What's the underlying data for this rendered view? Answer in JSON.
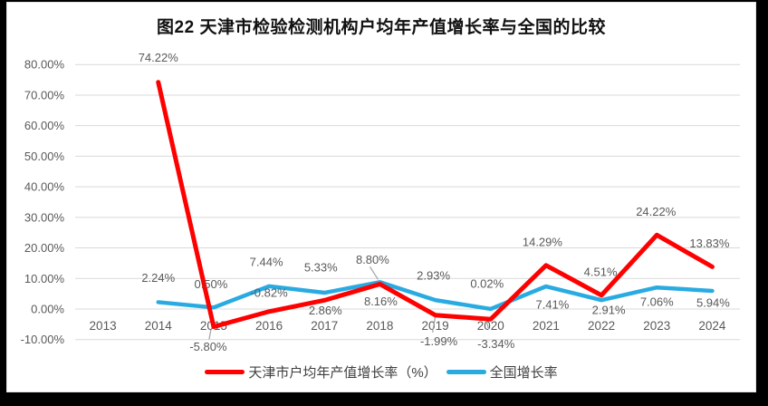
{
  "window": {
    "background": "#000000"
  },
  "chart_data": {
    "type": "line",
    "title": "图22 天津市检验检测机构户均年产值增长率与全国的比较",
    "categories": [
      "2013",
      "2014",
      "2015",
      "2016",
      "2017",
      "2018",
      "2019",
      "2020",
      "2021",
      "2022",
      "2023",
      "2024"
    ],
    "y_axis": {
      "min": -10,
      "max": 80,
      "step": 10,
      "grid": true,
      "tick_labels": [
        "80.00%",
        "70.00%",
        "60.00%",
        "50.00%",
        "40.00%",
        "30.00%",
        "20.00%",
        "10.00%",
        "0.00%",
        "-10.00%"
      ]
    },
    "series": [
      {
        "name": "全国增长率",
        "color": "#29ABE2",
        "line_width": 4.5,
        "start_category_index": 1,
        "points": [
          {
            "value": 2.24,
            "label": "2.24%",
            "dx": 0,
            "dy": -27
          },
          {
            "value": 0.5,
            "label": "0.50%",
            "dx": -3,
            "dy": -26
          },
          {
            "value": 7.44,
            "label": "7.44%",
            "dx": -3,
            "dy": -27
          },
          {
            "value": 5.33,
            "label": "5.33%",
            "dx": -4,
            "dy": -28
          },
          {
            "value": 8.8,
            "label": "8.80%",
            "dx": -8,
            "dy": -25,
            "leader": [
              -11,
              -17,
              -2,
              -3
            ]
          },
          {
            "value": 2.93,
            "label": "2.93%",
            "dx": -2,
            "dy": -27
          },
          {
            "value": 0.02,
            "label": "0.02%",
            "dx": -4,
            "dy": -28
          },
          {
            "value": 7.41,
            "label": "7.41%",
            "dx": 7,
            "dy": 20
          },
          {
            "value": 2.91,
            "label": "2.91%",
            "dx": 8,
            "dy": 11
          },
          {
            "value": 7.06,
            "label": "7.06%",
            "dx": 0,
            "dy": 16
          },
          {
            "value": 5.94,
            "label": "5.94%",
            "dx": 1,
            "dy": 13
          }
        ]
      },
      {
        "name": "天津市户均年产值增长率（%）",
        "color": "#FF0000",
        "line_width": 5,
        "start_category_index": 1,
        "points": [
          {
            "value": 74.22,
            "label": "74.22%",
            "dx": 0,
            "dy": -27
          },
          {
            "value": -5.8,
            "label": "-5.80%",
            "dx": -6,
            "dy": 22,
            "leader": [
              -3,
              3,
              -5,
              14
            ]
          },
          {
            "value": -0.82,
            "label": "-0.82%",
            "dx": 0,
            "dy": -21
          },
          {
            "value": 2.86,
            "label": "2.86%",
            "dx": 1,
            "dy": 11
          },
          {
            "value": 8.16,
            "label": "8.16%",
            "dx": 1,
            "dy": 19
          },
          {
            "value": -1.99,
            "label": "-1.99%",
            "dx": 4,
            "dy": 29,
            "leader": [
              0,
              2,
              -3,
              19
            ]
          },
          {
            "value": -3.34,
            "label": "-3.34%",
            "dx": 6,
            "dy": 27,
            "leader": [
              -6,
              -2,
              -2,
              11
            ]
          },
          {
            "value": 14.29,
            "label": "14.29%",
            "dx": -4,
            "dy": -26
          },
          {
            "value": 4.51,
            "label": "4.51%",
            "dx": -1,
            "dy": -26
          },
          {
            "value": 24.22,
            "label": "24.22%",
            "dx": -1,
            "dy": -26
          },
          {
            "value": 13.83,
            "label": "13.83%",
            "dx": -3,
            "dy": -26
          }
        ]
      }
    ],
    "legend": {
      "position": "bottom",
      "entries": [
        "天津市户均年产值增长率（%）",
        "全国增长率"
      ]
    },
    "colors": {
      "grid": "#D9D9D9",
      "axis_text": "#595959",
      "label_text": "#595959",
      "leader": "#A6A6A6",
      "title_text": "#111111"
    }
  }
}
